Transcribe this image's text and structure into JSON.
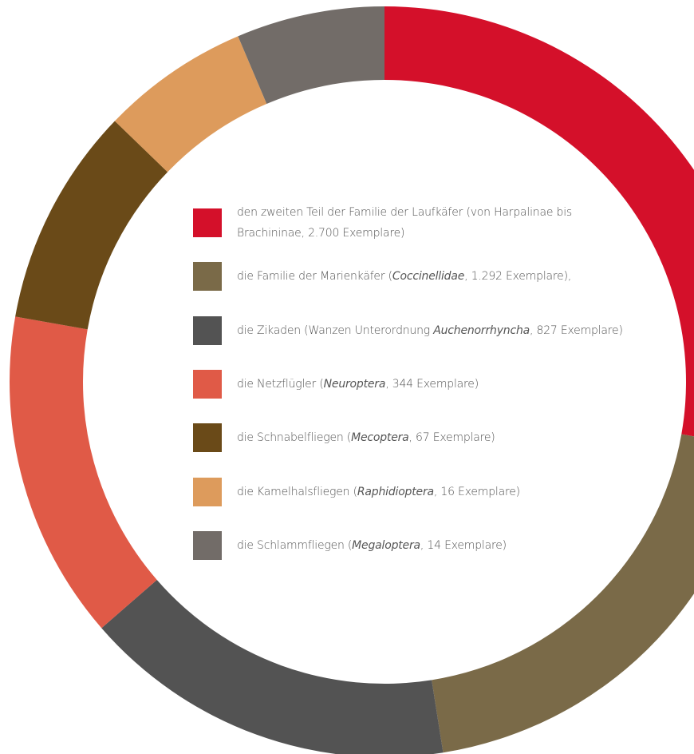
{
  "chart_data": {
    "type": "donut",
    "categories": [
      [
        "den zweiten Teil der Familie der Laufkäfer (von Harpalinae bis Brachininae, 2.700 Exemplare)"
      ],
      [
        "die Familie der Marienkäfer (",
        "Coccinellidae",
        ", 1.292 Exemplare),"
      ],
      [
        "die Zikaden (Wanzen Unterordnung ",
        "Auchenorrhyncha",
        ", 827 Exemplare)"
      ],
      [
        "die Netzflügler (",
        "Neuroptera",
        ", 344 Exemplare)"
      ],
      [
        "die Schnabelfliegen (",
        "Mecoptera",
        ", 67 Exemplare)"
      ],
      [
        "die Kamelhalsfliegen (",
        "Raphidioptera",
        ", 16 Exemplare)"
      ],
      [
        "die Schlammfliegen (",
        "Megaloptera",
        ", 14 Exemplare)"
      ]
    ],
    "values": [
      100,
      71,
      58,
      51,
      34,
      23,
      23
    ],
    "colors": [
      "#d4102a",
      "#7a6a48",
      "#535353",
      "#e05a47",
      "#6a4a18",
      "#dd9b5c",
      "#726c68"
    ]
  }
}
